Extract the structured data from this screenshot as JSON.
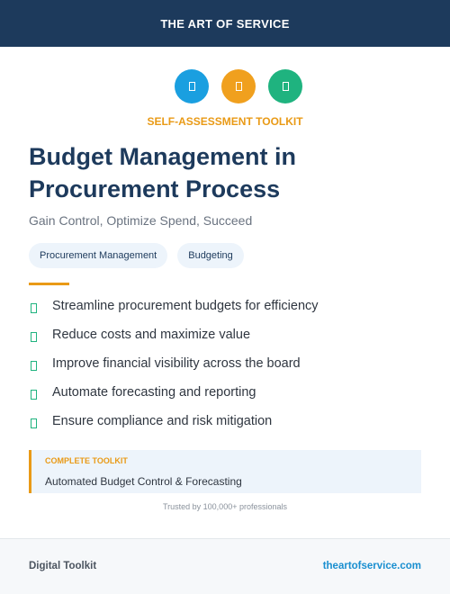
{
  "header": {
    "title": "THE ART OF SERVICE"
  },
  "badge": "SELF-ASSESSMENT TOOLKIT",
  "title": "Budget Management in Procurement Process",
  "subtitle": "Gain Control, Optimize Spend, Succeed",
  "tags": [
    "Procurement Management",
    "Budgeting"
  ],
  "features": [
    "Streamline procurement budgets for efficiency",
    "Reduce costs and maximize value",
    "Improve financial visibility across the board",
    "Automate forecasting and reporting",
    "Ensure compliance and risk mitigation"
  ],
  "callout": {
    "label": "COMPLETE TOOLKIT",
    "text": "Automated Budget Control & Forecasting"
  },
  "trust": "Trusted by 100,000+ professionals",
  "footer": {
    "left": "Digital Toolkit",
    "right": "theartofservice.com"
  }
}
